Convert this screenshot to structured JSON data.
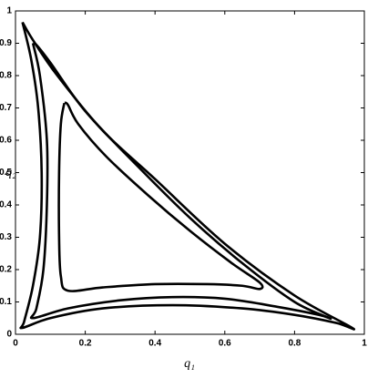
{
  "chart_data": {
    "type": "line",
    "xlabel": "q₁",
    "ylabel": "q₂",
    "xlim": [
      0,
      1
    ],
    "ylim": [
      0,
      1
    ],
    "xticks": [
      0,
      0.2,
      0.4,
      0.6,
      0.8,
      1
    ],
    "yticks": [
      0,
      0.1,
      0.2,
      0.3,
      0.4,
      0.5,
      0.6,
      0.7,
      0.8,
      0.9,
      1
    ],
    "series": [
      {
        "color": "#000000",
        "x": [
          0.02,
          0.045,
          0.065,
          0.075,
          0.07,
          0.05,
          0.025,
          0.02,
          0.1,
          0.25,
          0.45,
          0.65,
          0.8,
          0.92,
          0.965,
          0.8,
          0.6,
          0.4,
          0.25,
          0.12,
          0.05,
          0.02
        ],
        "values": [
          0.965,
          0.85,
          0.7,
          0.5,
          0.3,
          0.15,
          0.04,
          0.02,
          0.05,
          0.08,
          0.09,
          0.08,
          0.06,
          0.035,
          0.02,
          0.12,
          0.28,
          0.48,
          0.63,
          0.8,
          0.91,
          0.965
        ]
      },
      {
        "color": "#000000",
        "x": [
          0.05,
          0.07,
          0.09,
          0.09,
          0.08,
          0.06,
          0.05,
          0.15,
          0.3,
          0.45,
          0.6,
          0.75,
          0.87,
          0.9,
          0.8,
          0.65,
          0.5,
          0.35,
          0.2,
          0.1,
          0.06,
          0.05
        ],
        "values": [
          0.9,
          0.8,
          0.6,
          0.4,
          0.2,
          0.08,
          0.05,
          0.08,
          0.105,
          0.115,
          0.11,
          0.085,
          0.06,
          0.05,
          0.1,
          0.22,
          0.36,
          0.52,
          0.69,
          0.84,
          0.895,
          0.9
        ]
      },
      {
        "color": "#000000",
        "x": [
          0.14,
          0.13,
          0.125,
          0.125,
          0.13,
          0.15,
          0.25,
          0.4,
          0.55,
          0.65,
          0.7,
          0.7,
          0.62,
          0.5,
          0.38,
          0.26,
          0.18,
          0.15,
          0.14
        ],
        "values": [
          0.715,
          0.65,
          0.5,
          0.3,
          0.18,
          0.135,
          0.145,
          0.155,
          0.155,
          0.15,
          0.14,
          0.16,
          0.22,
          0.32,
          0.43,
          0.55,
          0.65,
          0.71,
          0.715
        ]
      }
    ]
  }
}
